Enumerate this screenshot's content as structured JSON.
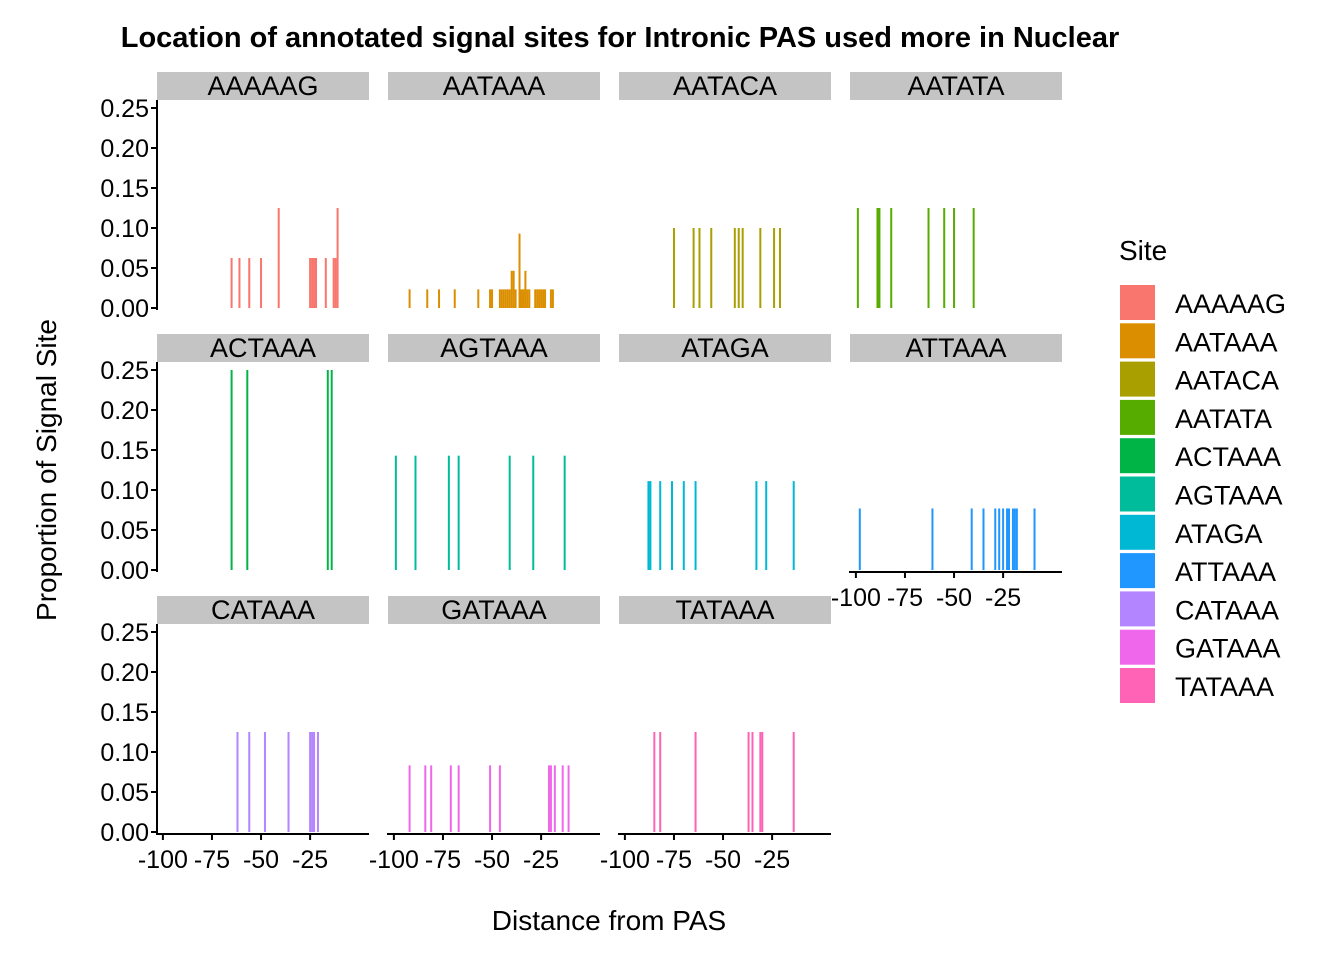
{
  "chart_data": {
    "type": "bar",
    "title": "Location of annotated signal sites for Intronic PAS used more in Nuclear",
    "xlabel": "Distance from PAS",
    "ylabel": "Proportion of Signal Site",
    "xlim": [
      -103,
      5
    ],
    "ylim": [
      0,
      0.26
    ],
    "x_ticks": [
      -100,
      -75,
      -50,
      -25
    ],
    "x_tick_labels": [
      "-100",
      "-75",
      "-50",
      "-25"
    ],
    "y_ticks": [
      0,
      0.05,
      0.1,
      0.15,
      0.2,
      0.25
    ],
    "y_tick_labels": [
      "0.00",
      "0.05",
      "0.10",
      "0.15",
      "0.20",
      "0.25"
    ],
    "grid": false,
    "legend": {
      "title": "Site",
      "position": "right"
    },
    "facets": [
      {
        "name": "AAAAAG",
        "color": "#F8766D",
        "bars": [
          {
            "x": -65,
            "y": 0.0625
          },
          {
            "x": -61,
            "y": 0.0625
          },
          {
            "x": -56,
            "y": 0.0625
          },
          {
            "x": -50,
            "y": 0.0625
          },
          {
            "x": -41,
            "y": 0.125
          },
          {
            "x": -25,
            "y": 0.0625
          },
          {
            "x": -24,
            "y": 0.0625
          },
          {
            "x": -23,
            "y": 0.0625
          },
          {
            "x": -22,
            "y": 0.0625
          },
          {
            "x": -17,
            "y": 0.0625
          },
          {
            "x": -13,
            "y": 0.0625
          },
          {
            "x": -12,
            "y": 0.0625
          },
          {
            "x": -11,
            "y": 0.125
          }
        ]
      },
      {
        "name": "AATAAA",
        "color": "#DB8E00",
        "bars": [
          {
            "x": -92,
            "y": 0.0233
          },
          {
            "x": -83,
            "y": 0.0233
          },
          {
            "x": -77,
            "y": 0.0233
          },
          {
            "x": -69,
            "y": 0.0233
          },
          {
            "x": -57,
            "y": 0.0233
          },
          {
            "x": -51,
            "y": 0.0233
          },
          {
            "x": -50,
            "y": 0.0233
          },
          {
            "x": -46,
            "y": 0.0233
          },
          {
            "x": -45,
            "y": 0.0233
          },
          {
            "x": -44,
            "y": 0.0233
          },
          {
            "x": -43,
            "y": 0.0233
          },
          {
            "x": -42,
            "y": 0.0233
          },
          {
            "x": -41,
            "y": 0.0233
          },
          {
            "x": -40,
            "y": 0.0465
          },
          {
            "x": -39,
            "y": 0.0465
          },
          {
            "x": -38,
            "y": 0.0233
          },
          {
            "x": -36,
            "y": 0.093
          },
          {
            "x": -35,
            "y": 0.0233
          },
          {
            "x": -34,
            "y": 0.0233
          },
          {
            "x": -33,
            "y": 0.0465
          },
          {
            "x": -32,
            "y": 0.0233
          },
          {
            "x": -31,
            "y": 0.0233
          },
          {
            "x": -28,
            "y": 0.0233
          },
          {
            "x": -27,
            "y": 0.0233
          },
          {
            "x": -26,
            "y": 0.0233
          },
          {
            "x": -25,
            "y": 0.0233
          },
          {
            "x": -24,
            "y": 0.0233
          },
          {
            "x": -23,
            "y": 0.0233
          },
          {
            "x": -20,
            "y": 0.0233
          },
          {
            "x": -19,
            "y": 0.0233
          }
        ]
      },
      {
        "name": "AATACA",
        "color": "#AA9F00",
        "bars": [
          {
            "x": -75,
            "y": 0.1
          },
          {
            "x": -65,
            "y": 0.1
          },
          {
            "x": -62,
            "y": 0.1
          },
          {
            "x": -56,
            "y": 0.1
          },
          {
            "x": -44,
            "y": 0.1
          },
          {
            "x": -42,
            "y": 0.1
          },
          {
            "x": -40,
            "y": 0.1
          },
          {
            "x": -31,
            "y": 0.1
          },
          {
            "x": -24,
            "y": 0.1
          },
          {
            "x": -21,
            "y": 0.1
          }
        ]
      },
      {
        "name": "AATATA",
        "color": "#57AC00",
        "bars": [
          {
            "x": -99,
            "y": 0.125
          },
          {
            "x": -89,
            "y": 0.125
          },
          {
            "x": -88,
            "y": 0.125
          },
          {
            "x": -82,
            "y": 0.125
          },
          {
            "x": -63,
            "y": 0.125
          },
          {
            "x": -55,
            "y": 0.125
          },
          {
            "x": -50,
            "y": 0.125
          },
          {
            "x": -40,
            "y": 0.125
          }
        ]
      },
      {
        "name": "ACTAAA",
        "color": "#00B545",
        "bars": [
          {
            "x": -65,
            "y": 0.25
          },
          {
            "x": -57,
            "y": 0.25
          },
          {
            "x": -16,
            "y": 0.25
          },
          {
            "x": -14,
            "y": 0.25
          }
        ]
      },
      {
        "name": "AGTAAA",
        "color": "#00BC9A",
        "bars": [
          {
            "x": -99,
            "y": 0.1429
          },
          {
            "x": -89,
            "y": 0.1429
          },
          {
            "x": -72,
            "y": 0.1429
          },
          {
            "x": -67,
            "y": 0.1429
          },
          {
            "x": -41,
            "y": 0.1429
          },
          {
            "x": -29,
            "y": 0.1429
          },
          {
            "x": -13,
            "y": 0.1429
          }
        ]
      },
      {
        "name": "ATAGA",
        "color": "#00B8D4",
        "bars": [
          {
            "x": -88,
            "y": 0.1111
          },
          {
            "x": -87,
            "y": 0.1111
          },
          {
            "x": -82,
            "y": 0.1111
          },
          {
            "x": -76,
            "y": 0.1111
          },
          {
            "x": -70,
            "y": 0.1111
          },
          {
            "x": -64,
            "y": 0.1111
          },
          {
            "x": -33,
            "y": 0.1111
          },
          {
            "x": -28,
            "y": 0.1111
          },
          {
            "x": -14,
            "y": 0.1111
          }
        ]
      },
      {
        "name": "ATTAAA",
        "color": "#1F97FF",
        "bars": [
          {
            "x": -98,
            "y": 0.0769
          },
          {
            "x": -61,
            "y": 0.0769
          },
          {
            "x": -41,
            "y": 0.0769
          },
          {
            "x": -35,
            "y": 0.0769
          },
          {
            "x": -29,
            "y": 0.0769
          },
          {
            "x": -27,
            "y": 0.0769
          },
          {
            "x": -25,
            "y": 0.0769
          },
          {
            "x": -23,
            "y": 0.0769
          },
          {
            "x": -22,
            "y": 0.0769
          },
          {
            "x": -20,
            "y": 0.0769
          },
          {
            "x": -19,
            "y": 0.0769
          },
          {
            "x": -18,
            "y": 0.0769
          },
          {
            "x": -9,
            "y": 0.0769
          }
        ]
      },
      {
        "name": "CATAAA",
        "color": "#B385FF",
        "bars": [
          {
            "x": -62,
            "y": 0.125
          },
          {
            "x": -56,
            "y": 0.125
          },
          {
            "x": -48,
            "y": 0.125
          },
          {
            "x": -36,
            "y": 0.125
          },
          {
            "x": -25,
            "y": 0.125
          },
          {
            "x": -24,
            "y": 0.125
          },
          {
            "x": -23,
            "y": 0.125
          },
          {
            "x": -21,
            "y": 0.125
          }
        ]
      },
      {
        "name": "GATAAA",
        "color": "#EF67EB",
        "bars": [
          {
            "x": -92,
            "y": 0.0833
          },
          {
            "x": -84,
            "y": 0.0833
          },
          {
            "x": -81,
            "y": 0.0833
          },
          {
            "x": -71,
            "y": 0.0833
          },
          {
            "x": -67,
            "y": 0.0833
          },
          {
            "x": -51,
            "y": 0.0833
          },
          {
            "x": -46,
            "y": 0.0833
          },
          {
            "x": -21,
            "y": 0.0833
          },
          {
            "x": -20,
            "y": 0.0833
          },
          {
            "x": -18,
            "y": 0.0833
          },
          {
            "x": -14,
            "y": 0.0833
          },
          {
            "x": -11,
            "y": 0.0833
          }
        ]
      },
      {
        "name": "TATAAA",
        "color": "#FF63B6",
        "bars": [
          {
            "x": -85,
            "y": 0.125
          },
          {
            "x": -82,
            "y": 0.125
          },
          {
            "x": -64,
            "y": 0.125
          },
          {
            "x": -37,
            "y": 0.125
          },
          {
            "x": -35,
            "y": 0.125
          },
          {
            "x": -31,
            "y": 0.125
          },
          {
            "x": -30,
            "y": 0.125
          },
          {
            "x": -14,
            "y": 0.125
          }
        ]
      }
    ]
  }
}
